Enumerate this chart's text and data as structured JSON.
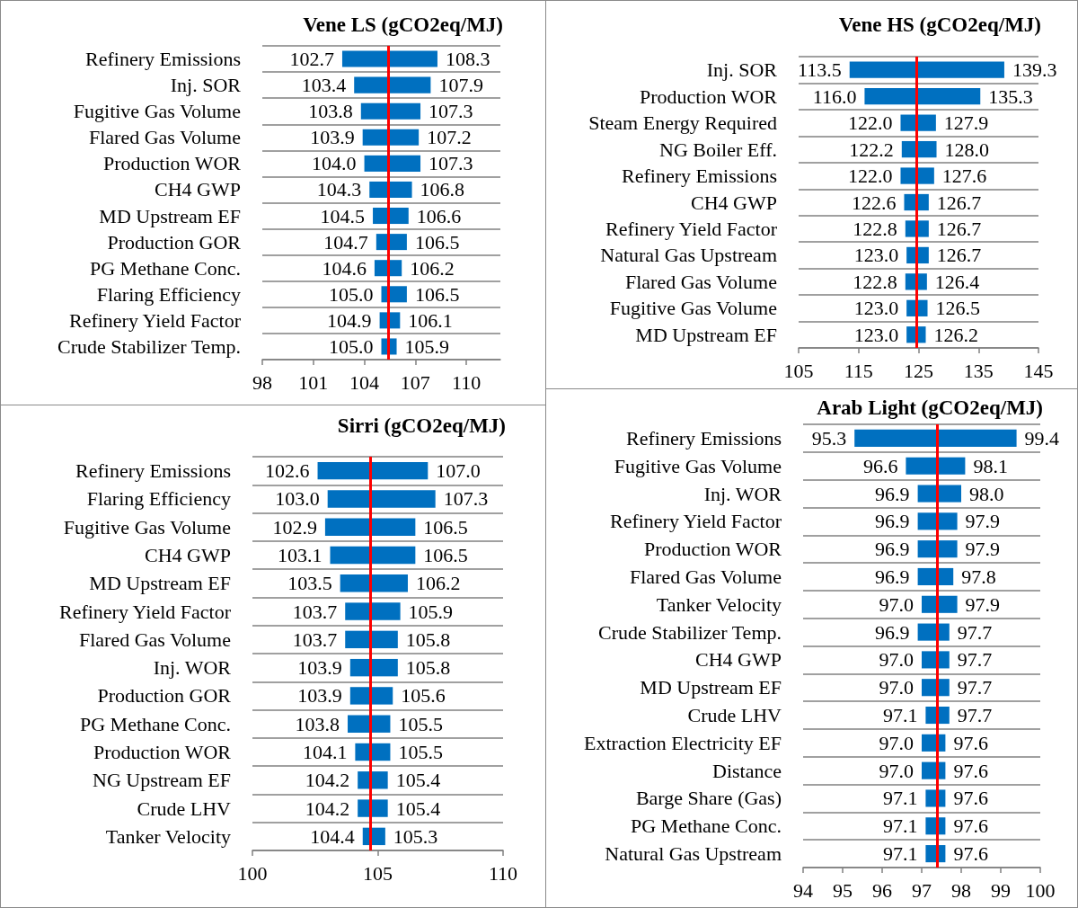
{
  "chart_data": [
    {
      "type": "bar",
      "orientation": "horizontal",
      "title": "Vene LS (gCO2eq/MJ)",
      "categories": [
        "Refinery Emissions",
        "Inj. SOR",
        "Fugitive Gas Volume",
        "Flared Gas Volume",
        "Production WOR",
        "CH4 GWP",
        "MD Upstream EF",
        "Production GOR",
        "PG Methane Conc.",
        "Flaring Efficiency",
        "Refinery Yield Factor",
        "Crude Stabilizer Temp."
      ],
      "series": [
        {
          "color": "#0070c0",
          "base": [
            105.4,
            105.4,
            105.4,
            105.4,
            105.4,
            105.4,
            105.4,
            105.4,
            105.4,
            105.4,
            105.4,
            105.4
          ],
          "values": [
            -2.7,
            -2.0,
            -1.6,
            -1.5,
            -1.4,
            -1.1,
            -0.9,
            -0.7,
            -0.8,
            -0.4,
            -0.5,
            -0.4
          ],
          "value_labels": [
            "102.7",
            "103.4",
            "103.8",
            "103.9",
            "104.0",
            "104.3",
            "104.5",
            "104.7",
            "104.6",
            "105.0",
            "104.9",
            "105.0"
          ]
        },
        {
          "color": "#0070c0",
          "base": [
            105.4,
            105.4,
            105.4,
            105.4,
            105.4,
            105.4,
            105.4,
            105.4,
            105.4,
            105.4,
            105.4,
            105.4
          ],
          "values": [
            2.9,
            2.5,
            1.9,
            1.8,
            1.9,
            1.4,
            1.2,
            1.1,
            0.8,
            1.1,
            0.7,
            0.5
          ],
          "value_labels": [
            "108.3",
            "107.9",
            "107.3",
            "107.2",
            "107.3",
            "106.8",
            "106.6",
            "106.5",
            "106.2",
            "106.5",
            "106.1",
            "105.9"
          ]
        }
      ],
      "xlim": [
        98,
        112
      ],
      "xticks": [
        98,
        101,
        104,
        107,
        110
      ],
      "grid": "y",
      "ref_lines": [
        {
          "axis": "x",
          "value": 105.4,
          "color": "#ff0000"
        }
      ]
    },
    {
      "type": "bar",
      "orientation": "horizontal",
      "title": "Vene HS (gCO2eq/MJ)",
      "categories": [
        "Inj. SOR",
        "Production WOR",
        "Steam Energy Required",
        "NG Boiler Eff.",
        "Refinery Emissions",
        "CH4 GWP",
        "Refinery Yield Factor",
        "Natural Gas Upstream",
        "Flared Gas Volume",
        "Fugitive Gas Volume",
        "MD Upstream EF"
      ],
      "series": [
        {
          "color": "#0070c0",
          "base": [
            124.7,
            124.7,
            124.7,
            124.7,
            124.7,
            124.7,
            124.7,
            124.7,
            124.7,
            124.7,
            124.7
          ],
          "values": [
            -11.2,
            -8.7,
            -2.7,
            -2.5,
            -2.7,
            -2.1,
            -1.9,
            -1.7,
            -1.9,
            -1.7,
            -1.7
          ],
          "value_labels": [
            "113.5",
            "116.0",
            "122.0",
            "122.2",
            "122.0",
            "122.6",
            "122.8",
            "123.0",
            "122.8",
            "123.0",
            "123.0"
          ]
        },
        {
          "color": "#0070c0",
          "base": [
            124.7,
            124.7,
            124.7,
            124.7,
            124.7,
            124.7,
            124.7,
            124.7,
            124.7,
            124.7,
            124.7
          ],
          "values": [
            14.6,
            10.6,
            3.2,
            3.3,
            2.9,
            2.0,
            2.0,
            2.0,
            1.7,
            1.8,
            1.5
          ],
          "value_labels": [
            "139.3",
            "135.3",
            "127.9",
            "128.0",
            "127.6",
            "126.7",
            "126.7",
            "126.7",
            "126.4",
            "126.5",
            "126.2"
          ]
        }
      ],
      "xlim": [
        105,
        145
      ],
      "xticks": [
        105,
        115,
        125,
        135,
        145
      ],
      "grid": "y",
      "ref_lines": [
        {
          "axis": "x",
          "value": 124.7,
          "color": "#ff0000"
        }
      ]
    },
    {
      "type": "bar",
      "orientation": "horizontal",
      "title": "Sirri (gCO2eq/MJ)",
      "categories": [
        "Refinery Emissions",
        "Flaring Efficiency",
        "Fugitive Gas Volume",
        "CH4 GWP",
        "MD Upstream EF",
        "Refinery Yield Factor",
        "Flared Gas Volume",
        "Inj. WOR",
        "Production GOR",
        "PG Methane Conc.",
        "Production WOR",
        "NG Upstream EF",
        "Crude LHV",
        "Tanker Velocity"
      ],
      "series": [
        {
          "color": "#0070c0",
          "base": [
            104.7,
            104.7,
            104.7,
            104.7,
            104.7,
            104.7,
            104.7,
            104.7,
            104.7,
            104.7,
            104.7,
            104.7,
            104.7,
            104.7
          ],
          "values": [
            -2.1,
            -1.7,
            -1.8,
            -1.6,
            -1.2,
            -1.0,
            -1.0,
            -0.8,
            -0.8,
            -0.9,
            -0.6,
            -0.5,
            -0.5,
            -0.3
          ],
          "value_labels": [
            "102.6",
            "103.0",
            "102.9",
            "103.1",
            "103.5",
            "103.7",
            "103.7",
            "103.9",
            "103.9",
            "103.8",
            "104.1",
            "104.2",
            "104.2",
            "104.4"
          ]
        },
        {
          "color": "#0070c0",
          "base": [
            104.7,
            104.7,
            104.7,
            104.7,
            104.7,
            104.7,
            104.7,
            104.7,
            104.7,
            104.7,
            104.7,
            104.7,
            104.7,
            104.7
          ],
          "values": [
            2.3,
            2.6,
            1.8,
            1.8,
            1.5,
            1.2,
            1.1,
            1.1,
            0.9,
            0.8,
            0.8,
            0.7,
            0.7,
            0.6
          ],
          "value_labels": [
            "107.0",
            "107.3",
            "106.5",
            "106.5",
            "106.2",
            "105.9",
            "105.8",
            "105.8",
            "105.6",
            "105.5",
            "105.5",
            "105.4",
            "105.4",
            "105.3"
          ]
        }
      ],
      "xlim": [
        100,
        110
      ],
      "xticks": [
        100,
        105,
        110
      ],
      "grid": "y",
      "ref_lines": [
        {
          "axis": "x",
          "value": 104.7,
          "color": "#ff0000"
        }
      ]
    },
    {
      "type": "bar",
      "orientation": "horizontal",
      "title": "Arab Light (gCO2eq/MJ)",
      "categories": [
        "Refinery Emissions",
        "Fugitive Gas Volume",
        "Inj. WOR",
        "Refinery Yield Factor",
        "Production WOR",
        "Flared Gas Volume",
        "Tanker Velocity",
        "Crude Stabilizer Temp.",
        "CH4 GWP",
        "MD Upstream EF",
        "Crude LHV",
        "Extraction Electricity EF",
        "Distance",
        "Barge Share (Gas)",
        "PG Methane Conc.",
        "Natural Gas Upstream"
      ],
      "series": [
        {
          "color": "#0070c0",
          "base": [
            97.4,
            97.4,
            97.4,
            97.4,
            97.4,
            97.4,
            97.4,
            97.4,
            97.4,
            97.4,
            97.4,
            97.4,
            97.4,
            97.4,
            97.4,
            97.4
          ],
          "values": [
            -2.1,
            -0.8,
            -0.5,
            -0.5,
            -0.5,
            -0.5,
            -0.4,
            -0.5,
            -0.4,
            -0.4,
            -0.3,
            -0.4,
            -0.4,
            -0.3,
            -0.3,
            -0.3
          ],
          "value_labels": [
            "95.3",
            "96.6",
            "96.9",
            "96.9",
            "96.9",
            "96.9",
            "97.0",
            "96.9",
            "97.0",
            "97.0",
            "97.1",
            "97.0",
            "97.0",
            "97.1",
            "97.1",
            "97.1"
          ]
        },
        {
          "color": "#0070c0",
          "base": [
            97.4,
            97.4,
            97.4,
            97.4,
            97.4,
            97.4,
            97.4,
            97.4,
            97.4,
            97.4,
            97.4,
            97.4,
            97.4,
            97.4,
            97.4,
            97.4
          ],
          "values": [
            2.0,
            0.7,
            0.6,
            0.5,
            0.5,
            0.4,
            0.5,
            0.3,
            0.3,
            0.3,
            0.3,
            0.2,
            0.2,
            0.2,
            0.2,
            0.2
          ],
          "value_labels": [
            "99.4",
            "98.1",
            "98.0",
            "97.9",
            "97.9",
            "97.8",
            "97.9",
            "97.7",
            "97.7",
            "97.7",
            "97.7",
            "97.6",
            "97.6",
            "97.6",
            "97.6",
            "97.6"
          ]
        }
      ],
      "xlim": [
        94,
        100
      ],
      "xticks": [
        94,
        95,
        96,
        97,
        98,
        99,
        100
      ],
      "grid": "y",
      "ref_lines": [
        {
          "axis": "x",
          "value": 97.4,
          "color": "#ff0000"
        }
      ]
    }
  ]
}
